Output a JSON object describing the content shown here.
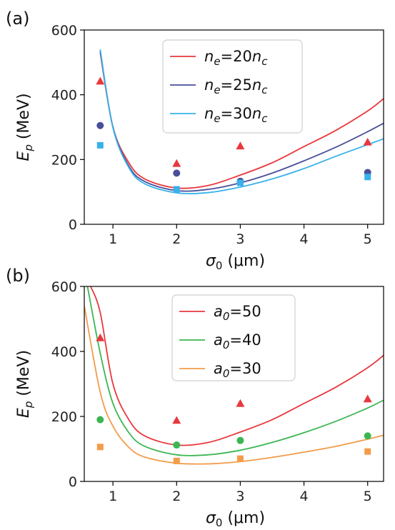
{
  "chart_data": [
    {
      "type": "line",
      "panel_label": "(a)",
      "xlabel_symbol": "σ",
      "xlabel_sub": "0",
      "xlabel_unit": "(μm)",
      "ylabel_symbol": "E",
      "ylabel_sub": "p",
      "ylabel_unit": "(MeV)",
      "xlim": [
        0.55,
        5.25
      ],
      "ylim": [
        0,
        600
      ],
      "xticks": [
        1,
        2,
        3,
        4,
        5
      ],
      "yticks": [
        0,
        200,
        400,
        600
      ],
      "grid": false,
      "legend_position": "top-center",
      "series": [
        {
          "legend": {
            "pre": "n",
            "pre_sub": "e",
            "mid": "=20n",
            "mid_sub": "c"
          },
          "color": "#e8383d",
          "marker": "triangle",
          "curve_x": [
            0.8,
            1.0,
            1.25,
            1.5,
            2.0,
            2.5,
            3.0,
            3.5,
            4.0,
            4.5,
            5.0,
            5.25
          ],
          "curve_y": [
            530,
            300,
            190,
            140,
            112,
            120,
            152,
            190,
            240,
            290,
            350,
            388
          ],
          "points_x": [
            0.8,
            2,
            3,
            5
          ],
          "points_y": [
            442,
            188,
            242,
            254
          ]
        },
        {
          "legend": {
            "pre": "n",
            "pre_sub": "e",
            "mid": "=25n",
            "mid_sub": "c"
          },
          "color": "#4a4f9a",
          "marker": "circle",
          "curve_x": [
            0.8,
            1.0,
            1.25,
            1.5,
            2.0,
            2.5,
            3.0,
            3.5,
            4.0,
            4.5,
            5.0,
            5.25
          ],
          "curve_y": [
            535,
            300,
            180,
            132,
            104,
            108,
            128,
            158,
            196,
            238,
            286,
            312
          ],
          "points_x": [
            0.8,
            2,
            3,
            5
          ],
          "points_y": [
            305,
            158,
            133,
            160
          ]
        },
        {
          "legend": {
            "pre": "n",
            "pre_sub": "e",
            "mid": "=30n",
            "mid_sub": "c"
          },
          "color": "#37b1ea",
          "marker": "square",
          "curve_x": [
            0.8,
            1.0,
            1.25,
            1.5,
            2.0,
            2.5,
            3.0,
            3.5,
            4.0,
            4.5,
            5.0,
            5.25
          ],
          "curve_y": [
            540,
            298,
            175,
            125,
            97,
            98,
            115,
            140,
            172,
            210,
            246,
            264
          ],
          "points_x": [
            0.8,
            2,
            3,
            5
          ],
          "points_y": [
            244,
            108,
            128,
            146
          ]
        }
      ]
    },
    {
      "type": "line",
      "panel_label": "(b)",
      "xlabel_symbol": "σ",
      "xlabel_sub": "0",
      "xlabel_unit": "(μm)",
      "ylabel_symbol": "E",
      "ylabel_sub": "p",
      "ylabel_unit": "(MeV)",
      "xlim": [
        0.55,
        5.25
      ],
      "ylim": [
        0,
        600
      ],
      "xticks": [
        1,
        2,
        3,
        4,
        5
      ],
      "yticks": [
        0,
        200,
        400,
        600
      ],
      "grid": false,
      "legend_position": "top-center",
      "series": [
        {
          "legend": {
            "pre": "a",
            "pre_sub": "0",
            "mid": "=50",
            "mid_sub": ""
          },
          "color": "#e8383d",
          "marker": "triangle",
          "curve_x": [
            0.65,
            0.8,
            1.0,
            1.25,
            1.5,
            2.0,
            2.5,
            3.0,
            3.5,
            4.0,
            4.5,
            5.0,
            5.25
          ],
          "curve_y": [
            600,
            520,
            300,
            190,
            140,
            112,
            120,
            152,
            190,
            240,
            290,
            350,
            388
          ],
          "points_x": [
            0.8,
            2,
            3,
            5
          ],
          "points_y": [
            442,
            188,
            240,
            254
          ]
        },
        {
          "legend": {
            "pre": "a",
            "pre_sub": "0",
            "mid": "=40",
            "mid_sub": ""
          },
          "color": "#3bb652",
          "marker": "circle",
          "curve_x": [
            0.6,
            0.8,
            1.0,
            1.25,
            1.5,
            2.0,
            2.5,
            3.0,
            3.5,
            4.0,
            4.5,
            5.0,
            5.25
          ],
          "curve_y": [
            600,
            395,
            240,
            150,
            108,
            82,
            82,
            96,
            120,
            150,
            185,
            226,
            250
          ],
          "points_x": [
            0.8,
            2,
            3,
            5
          ],
          "points_y": [
            190,
            112,
            126,
            140
          ]
        },
        {
          "legend": {
            "pre": "a",
            "pre_sub": "0",
            "mid": "=30",
            "mid_sub": ""
          },
          "color": "#f39c4a",
          "marker": "square",
          "curve_x": [
            0.55,
            0.8,
            1.0,
            1.25,
            1.5,
            2.0,
            2.5,
            3.0,
            3.5,
            4.0,
            4.5,
            5.0,
            5.25
          ],
          "curve_y": [
            540,
            275,
            170,
            105,
            75,
            56,
            54,
            61,
            74,
            90,
            108,
            130,
            142
          ],
          "points_x": [
            0.8,
            2,
            3,
            5
          ],
          "points_y": [
            106,
            63,
            70,
            92
          ]
        }
      ]
    }
  ]
}
